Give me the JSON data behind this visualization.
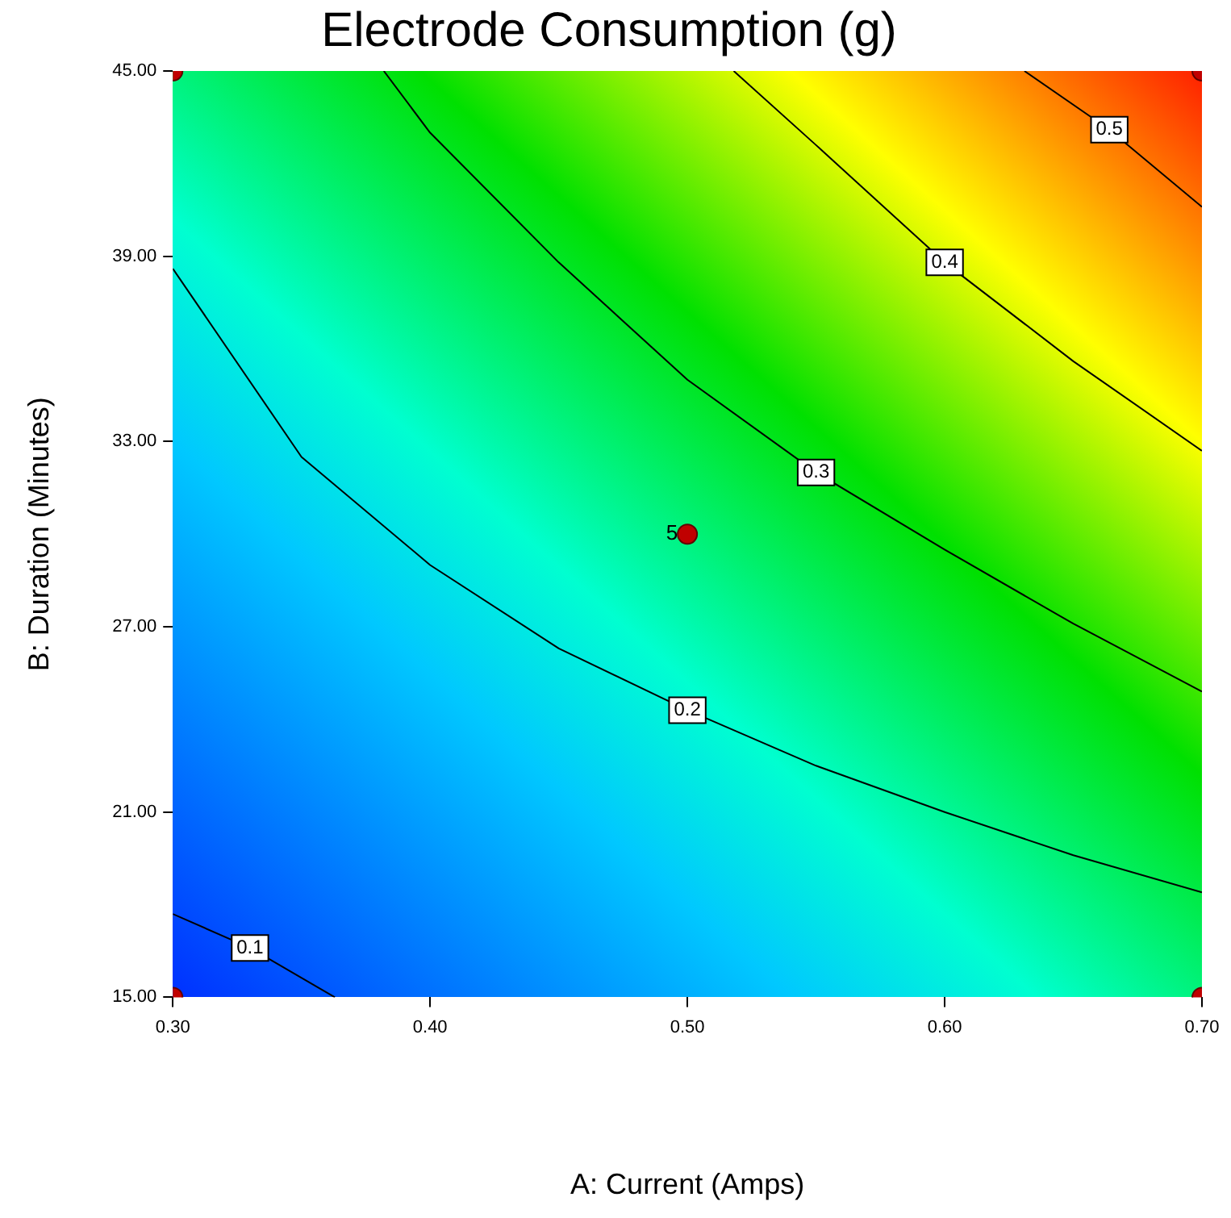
{
  "chart_data": {
    "type": "line",
    "title": "Electrode Consumption (g)",
    "xlabel": "A: Current (Amps)",
    "ylabel": "B: Duration (Minutes)",
    "xlim": [
      0.3,
      0.7
    ],
    "xticks": [
      {
        "value": 0.3,
        "label": "0.30"
      },
      {
        "value": 0.4,
        "label": "0.40"
      },
      {
        "value": 0.5,
        "label": "0.50"
      },
      {
        "value": 0.6,
        "label": "0.60"
      },
      {
        "value": 0.7,
        "label": "0.70"
      }
    ],
    "ylim": [
      15,
      45
    ],
    "yticks": [
      {
        "value": 15,
        "label": "15.00"
      },
      {
        "value": 21,
        "label": "21.00"
      },
      {
        "value": 27,
        "label": "27.00"
      },
      {
        "value": 33,
        "label": "33.00"
      },
      {
        "value": 39,
        "label": "39.00"
      },
      {
        "value": 45,
        "label": "45.00"
      }
    ],
    "grid": false,
    "legend": false,
    "marker": "none",
    "line_style": "solid",
    "series": [
      {
        "name": "0.1",
        "color": "#000000",
        "x": [
          0.3,
          0.33,
          0.363
        ],
        "values": [
          17.7,
          16.6,
          15
        ]
      },
      {
        "name": "0.2",
        "color": "#000000",
        "x": [
          0.3,
          0.35,
          0.4,
          0.45,
          0.5,
          0.55,
          0.6,
          0.65,
          0.7
        ],
        "values": [
          38.6,
          32.5,
          29,
          26.3,
          24.3,
          22.5,
          21,
          19.6,
          18.4
        ]
      },
      {
        "name": "0.3",
        "color": "#000000",
        "x": [
          0.382,
          0.4,
          0.45,
          0.5,
          0.55,
          0.6,
          0.65,
          0.7
        ],
        "values": [
          45,
          43,
          38.8,
          35,
          32,
          29.5,
          27.1,
          24.9
        ]
      },
      {
        "name": "0.4",
        "color": "#000000",
        "x": [
          0.518,
          0.55,
          0.6,
          0.65,
          0.7
        ],
        "values": [
          45,
          42.6,
          38.8,
          35.6,
          32.7
        ]
      },
      {
        "name": "0.5",
        "color": "#000000",
        "x": [
          0.631,
          0.664,
          0.7
        ],
        "values": [
          45,
          43.1,
          40.6
        ]
      },
      {
        "type": "scatter",
        "marker": "circle",
        "color": "#c00000",
        "x": [
          0.3,
          0.3,
          0.7,
          0.7,
          0.5
        ],
        "values": [
          15,
          45,
          15,
          45,
          30
        ]
      }
    ],
    "annotations": [
      {
        "text": "5",
        "x": 0.5,
        "y": 30
      }
    ]
  }
}
